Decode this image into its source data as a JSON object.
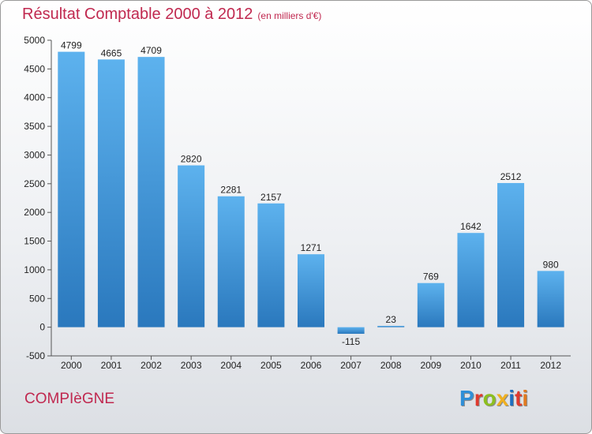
{
  "header": {
    "title": "Résultat Comptable 2000 à 2012",
    "subtitle": "(en milliers d'€)"
  },
  "footer": {
    "city": "COMPIèGNE"
  },
  "brand": {
    "letters": [
      "P",
      "r",
      "o",
      "x",
      "i",
      "t",
      "i"
    ],
    "colors": [
      "#2f8fd8",
      "#e03a2e",
      "#8cbf1f",
      "#f0b020",
      "#1f6fc0",
      "#e03a2e",
      "#e07a20"
    ]
  },
  "colors": {
    "bar_top": "#5db2ee",
    "bar_bottom": "#2a78bd",
    "title": "#c0284f"
  },
  "chart_data": {
    "type": "bar",
    "title": "Résultat Comptable 2000 à 2012",
    "subtitle": "(en milliers d'€)",
    "categories": [
      "2000",
      "2001",
      "2002",
      "2003",
      "2004",
      "2005",
      "2006",
      "2007",
      "2008",
      "2009",
      "2010",
      "2011",
      "2012"
    ],
    "values": [
      4799,
      4665,
      4709,
      2820,
      2281,
      2157,
      1271,
      -115,
      23,
      769,
      1642,
      2512,
      980
    ],
    "ylim": [
      -500,
      5000
    ],
    "yticks": [
      -500,
      0,
      500,
      1000,
      1500,
      2000,
      2500,
      3000,
      3500,
      4000,
      4500,
      5000
    ],
    "grid": false,
    "legend": "none"
  }
}
